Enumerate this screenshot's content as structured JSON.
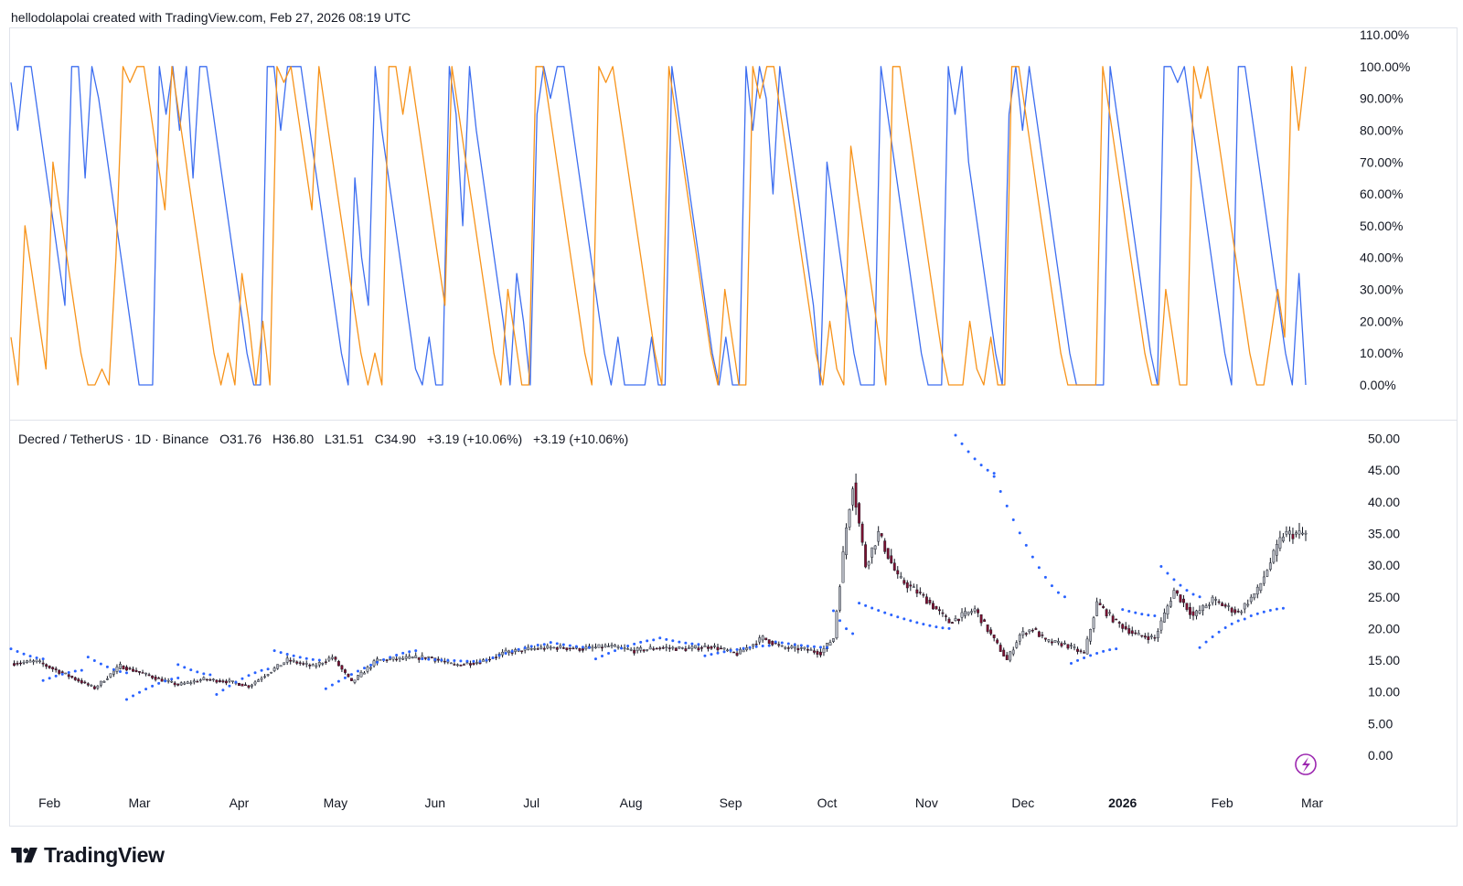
{
  "header": {
    "credit": "hellodolapolai created with TradingView.com, Feb 27, 2026 08:19 UTC"
  },
  "legend": {
    "symbol": "Decred / TetherUS · 1D · Binance",
    "open": "O31.76",
    "high": "H36.80",
    "low": "L31.51",
    "close": "C34.90",
    "change1": "+3.19 (+10.06%)",
    "change2": "+3.19 (+10.06%)"
  },
  "footer": {
    "brand": "TradingView"
  },
  "colors": {
    "blue": "#3d6ef0",
    "orange": "#f7931a",
    "candle_up": "#b2b5be",
    "candle_down": "#7a1030",
    "wick": "#131722",
    "psar": "#2962ff",
    "accent": "#9c27b0"
  },
  "icons": {
    "brand_logo": "tradingview-logo-icon",
    "lightning": "lightning-bolt-icon"
  },
  "chart_data": [
    {
      "type": "line",
      "pane": "oscillator",
      "ylim": [
        0,
        110
      ],
      "y_ticks": [
        "110.00%",
        "100.00%",
        "90.00%",
        "80.00%",
        "70.00%",
        "60.00%",
        "50.00%",
        "40.00%",
        "30.00%",
        "20.00%",
        "10.00%",
        "0.00%"
      ],
      "x_start": "2025-01-20",
      "x_end": "2026-02-27",
      "series": [
        {
          "color": "#3d6ef0",
          "values": [
            95,
            80,
            100,
            100,
            85,
            70,
            55,
            40,
            25,
            100,
            100,
            65,
            100,
            90,
            75,
            60,
            45,
            30,
            15,
            0,
            0,
            0,
            100,
            85,
            100,
            80,
            100,
            65,
            100,
            100,
            85,
            70,
            55,
            40,
            25,
            10,
            0,
            0,
            100,
            100,
            80,
            100,
            100,
            100,
            85,
            70,
            55,
            40,
            25,
            10,
            0,
            65,
            40,
            25,
            100,
            80,
            65,
            50,
            35,
            20,
            5,
            0,
            15,
            0,
            0,
            100,
            85,
            50,
            100,
            80,
            65,
            50,
            35,
            20,
            0,
            35,
            20,
            0,
            85,
            100,
            90,
            100,
            100,
            85,
            70,
            55,
            40,
            25,
            10,
            0,
            15,
            0,
            0,
            0,
            0,
            15,
            0,
            0,
            100,
            85,
            70,
            55,
            40,
            25,
            10,
            0,
            15,
            0,
            0,
            100,
            80,
            100,
            90,
            60,
            100,
            85,
            70,
            55,
            40,
            25,
            0,
            70,
            55,
            40,
            25,
            10,
            0,
            0,
            0,
            100,
            85,
            70,
            55,
            40,
            25,
            10,
            0,
            0,
            0,
            100,
            85,
            100,
            70,
            55,
            40,
            25,
            10,
            0,
            85,
            100,
            80,
            100,
            85,
            70,
            55,
            40,
            25,
            10,
            0,
            0,
            0,
            0,
            0,
            100,
            85,
            70,
            55,
            40,
            25,
            10,
            0,
            100,
            100,
            95,
            100,
            85,
            70,
            55,
            40,
            25,
            10,
            0,
            100,
            100,
            85,
            70,
            55,
            40,
            25,
            10,
            0,
            35,
            0
          ]
        },
        {
          "color": "#f7931a",
          "values": [
            15,
            0,
            50,
            35,
            20,
            5,
            70,
            55,
            40,
            25,
            10,
            0,
            0,
            5,
            0,
            40,
            100,
            95,
            100,
            100,
            85,
            70,
            55,
            100,
            85,
            70,
            55,
            40,
            25,
            10,
            0,
            10,
            0,
            35,
            20,
            0,
            20,
            0,
            100,
            95,
            100,
            85,
            70,
            55,
            100,
            85,
            70,
            55,
            40,
            25,
            10,
            0,
            10,
            0,
            100,
            100,
            85,
            100,
            85,
            70,
            55,
            40,
            25,
            100,
            85,
            70,
            55,
            40,
            25,
            10,
            0,
            30,
            15,
            0,
            0,
            100,
            100,
            85,
            70,
            55,
            40,
            25,
            10,
            0,
            100,
            95,
            100,
            85,
            70,
            55,
            40,
            25,
            10,
            0,
            100,
            85,
            70,
            55,
            40,
            25,
            10,
            0,
            30,
            15,
            0,
            0,
            100,
            90,
            100,
            100,
            85,
            70,
            55,
            40,
            25,
            10,
            0,
            20,
            5,
            0,
            75,
            60,
            45,
            30,
            15,
            0,
            100,
            100,
            85,
            70,
            55,
            40,
            25,
            10,
            0,
            0,
            0,
            20,
            5,
            0,
            15,
            0,
            0,
            100,
            100,
            85,
            70,
            55,
            40,
            25,
            10,
            0,
            0,
            0,
            0,
            0,
            100,
            85,
            70,
            55,
            40,
            25,
            10,
            0,
            0,
            30,
            15,
            0,
            0,
            100,
            90,
            100,
            85,
            70,
            55,
            40,
            25,
            10,
            0,
            0,
            15,
            30,
            15,
            100,
            80,
            100
          ]
        }
      ]
    },
    {
      "type": "candlestick",
      "pane": "price",
      "title": "Decred / TetherUS · 1D · Binance",
      "ylim": [
        0,
        50
      ],
      "y_ticks": [
        "50.00",
        "45.00",
        "40.00",
        "35.00",
        "30.00",
        "25.00",
        "20.00",
        "15.00",
        "10.00",
        "5.00",
        "0.00"
      ],
      "x_ticks": [
        "Feb",
        "Mar",
        "Apr",
        "May",
        "Jun",
        "Jul",
        "Aug",
        "Sep",
        "Oct",
        "Nov",
        "Dec",
        "2026",
        "Feb",
        "Mar"
      ],
      "x_start": "2025-01-20",
      "x_end": "2026-02-27",
      "close_anchors": [
        [
          0,
          14.5
        ],
        [
          8,
          14.8
        ],
        [
          18,
          12.5
        ],
        [
          26,
          10.6
        ],
        [
          34,
          14.1
        ],
        [
          45,
          12.2
        ],
        [
          52,
          11.1
        ],
        [
          60,
          12.0
        ],
        [
          68,
          11.6
        ],
        [
          74,
          10.9
        ],
        [
          80,
          13.0
        ],
        [
          86,
          15.0
        ],
        [
          94,
          14.0
        ],
        [
          100,
          15.5
        ],
        [
          106,
          11.5
        ],
        [
          114,
          15.0
        ],
        [
          120,
          15.2
        ],
        [
          130,
          15.5
        ],
        [
          138,
          14.2
        ],
        [
          146,
          14.8
        ],
        [
          154,
          16.2
        ],
        [
          162,
          16.8
        ],
        [
          170,
          17.0
        ],
        [
          178,
          16.8
        ],
        [
          186,
          17.2
        ],
        [
          194,
          16.5
        ],
        [
          202,
          17.0
        ],
        [
          210,
          16.8
        ],
        [
          218,
          17.2
        ],
        [
          226,
          16.0
        ],
        [
          234,
          18.5
        ],
        [
          240,
          17.0
        ],
        [
          246,
          16.8
        ],
        [
          252,
          16.2
        ],
        [
          256,
          18.5
        ],
        [
          260,
          36.0
        ],
        [
          262,
          43.0
        ],
        [
          266,
          30.0
        ],
        [
          270,
          35.0
        ],
        [
          276,
          28.0
        ],
        [
          284,
          25.0
        ],
        [
          292,
          21.0
        ],
        [
          300,
          23.0
        ],
        [
          310,
          15.0
        ],
        [
          314,
          19.0
        ],
        [
          318,
          20.0
        ],
        [
          322,
          18.0
        ],
        [
          328,
          17.5
        ],
        [
          334,
          16.0
        ],
        [
          338,
          24.0
        ],
        [
          344,
          21.0
        ],
        [
          350,
          19.0
        ],
        [
          356,
          18.5
        ],
        [
          362,
          26.0
        ],
        [
          368,
          22.0
        ],
        [
          374,
          24.5
        ],
        [
          378,
          23.5
        ],
        [
          382,
          22.5
        ],
        [
          388,
          26.0
        ],
        [
          396,
          34.9
        ]
      ],
      "psar": [
        {
          "start": 0,
          "end": 10,
          "from": 16.8,
          "to": 15.2
        },
        {
          "start": 10,
          "end": 22,
          "from": 11.8,
          "to": 13.4
        },
        {
          "start": 24,
          "end": 36,
          "from": 15.5,
          "to": 13.0
        },
        {
          "start": 36,
          "end": 52,
          "from": 8.8,
          "to": 12.2
        },
        {
          "start": 52,
          "end": 62,
          "from": 14.3,
          "to": 12.7
        },
        {
          "start": 64,
          "end": 80,
          "from": 9.6,
          "to": 13.6
        },
        {
          "start": 82,
          "end": 96,
          "from": 16.5,
          "to": 15.0
        },
        {
          "start": 98,
          "end": 126,
          "from": 10.5,
          "to": 16.5
        },
        {
          "start": 128,
          "end": 146,
          "from": 15.2,
          "to": 14.8
        },
        {
          "start": 148,
          "end": 166,
          "from": 15.0,
          "to": 17.5
        },
        {
          "start": 168,
          "end": 180,
          "from": 17.8,
          "to": 17.0
        },
        {
          "start": 182,
          "end": 200,
          "from": 15.2,
          "to": 18.2
        },
        {
          "start": 202,
          "end": 214,
          "from": 18.5,
          "to": 17.5
        },
        {
          "start": 216,
          "end": 236,
          "from": 15.7,
          "to": 17.3
        },
        {
          "start": 238,
          "end": 254,
          "from": 17.9,
          "to": 17.0
        },
        {
          "start": 256,
          "end": 262,
          "from": 22.8,
          "to": 19.2
        },
        {
          "start": 264,
          "end": 292,
          "from": 24.0,
          "to": 20.0
        },
        {
          "start": 294,
          "end": 306,
          "from": 50.5,
          "to": 44.5
        },
        {
          "start": 306,
          "end": 328,
          "from": 44.0,
          "to": 25.0
        },
        {
          "start": 330,
          "end": 344,
          "from": 14.5,
          "to": 16.8
        },
        {
          "start": 346,
          "end": 356,
          "from": 23.0,
          "to": 22.0
        },
        {
          "start": 358,
          "end": 370,
          "from": 29.8,
          "to": 25.0
        },
        {
          "start": 370,
          "end": 384,
          "from": 17.0,
          "to": 21.5
        },
        {
          "start": 386,
          "end": 396,
          "from": 22.0,
          "to": 23.2
        }
      ]
    }
  ]
}
